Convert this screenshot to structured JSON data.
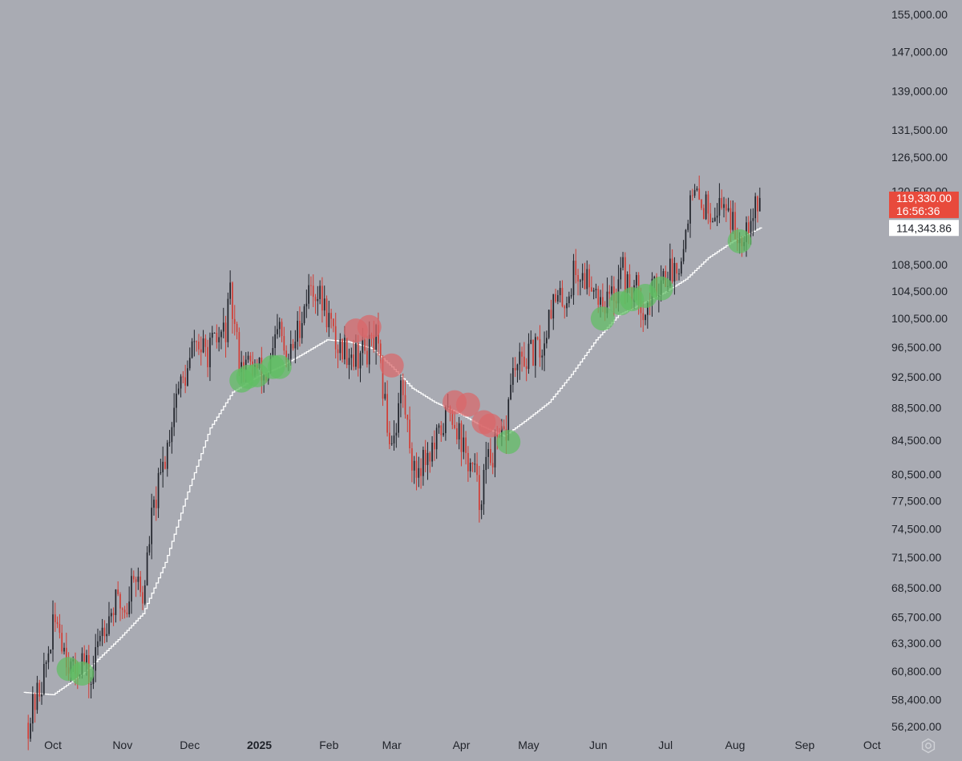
{
  "theme": {
    "background": "#a9abb3",
    "up_candle": "#1f2229",
    "down_candle": "#d23b33",
    "ma_line": "#ffffff",
    "axis_text": "#1f2229",
    "price_badge_bg": "#e84a3c",
    "price_badge_text": "#ffffff",
    "ma_badge_bg": "#ffffff",
    "ma_badge_text": "#1f2229",
    "support_circle": "#5fbe62",
    "resistance_circle": "#d9666a"
  },
  "chart_data": {
    "type": "candlestick",
    "scale": "log",
    "x_range": [
      "2024-09-19",
      "2025-10-28"
    ],
    "y_range": [
      55000,
      160000
    ],
    "y_ticks": [
      {
        "value": 155000,
        "label": "155,000.00"
      },
      {
        "value": 147000,
        "label": "147,000.00"
      },
      {
        "value": 139000,
        "label": "139,000.00"
      },
      {
        "value": 131500,
        "label": "131,500.00"
      },
      {
        "value": 126500,
        "label": "126,500.00"
      },
      {
        "value": 120500,
        "label": "120,500.00"
      },
      {
        "value": 108500,
        "label": "108,500.00"
      },
      {
        "value": 104500,
        "label": "104,500.00"
      },
      {
        "value": 100500,
        "label": "100,500.00"
      },
      {
        "value": 96500,
        "label": "96,500.00"
      },
      {
        "value": 92500,
        "label": "92,500.00"
      },
      {
        "value": 88500,
        "label": "88,500.00"
      },
      {
        "value": 84500,
        "label": "84,500.00"
      },
      {
        "value": 80500,
        "label": "80,500.00"
      },
      {
        "value": 77500,
        "label": "77,500.00"
      },
      {
        "value": 74500,
        "label": "74,500.00"
      },
      {
        "value": 71500,
        "label": "71,500.00"
      },
      {
        "value": 68500,
        "label": "68,500.00"
      },
      {
        "value": 65700,
        "label": "65,700.00"
      },
      {
        "value": 63300,
        "label": "63,300.00"
      },
      {
        "value": 60800,
        "label": "60,800.00"
      },
      {
        "value": 58400,
        "label": "58,400.00"
      },
      {
        "value": 56200,
        "label": "56,200.00"
      }
    ],
    "x_ticks": [
      {
        "date": "2024-10-01",
        "label": "Oct",
        "bold": false
      },
      {
        "date": "2024-11-01",
        "label": "Nov",
        "bold": false
      },
      {
        "date": "2024-12-01",
        "label": "Dec",
        "bold": false
      },
      {
        "date": "2025-01-01",
        "label": "2025",
        "bold": true
      },
      {
        "date": "2025-02-01",
        "label": "Feb",
        "bold": false
      },
      {
        "date": "2025-03-01",
        "label": "Mar",
        "bold": false
      },
      {
        "date": "2025-04-01",
        "label": "Apr",
        "bold": false
      },
      {
        "date": "2025-05-01",
        "label": "May",
        "bold": false
      },
      {
        "date": "2025-06-01",
        "label": "Jun",
        "bold": false
      },
      {
        "date": "2025-07-01",
        "label": "Jul",
        "bold": false
      },
      {
        "date": "2025-08-01",
        "label": "Aug",
        "bold": false
      },
      {
        "date": "2025-09-01",
        "label": "Sep",
        "bold": false
      },
      {
        "date": "2025-10-01",
        "label": "Oct",
        "bold": false
      }
    ],
    "price_path": [
      [
        "2024-09-20",
        56500
      ],
      [
        "2024-09-27",
        60500
      ],
      [
        "2024-10-01",
        64500
      ],
      [
        "2024-10-03",
        65500
      ],
      [
        "2024-10-06",
        63000
      ],
      [
        "2024-10-10",
        60500
      ],
      [
        "2024-10-14",
        62000
      ],
      [
        "2024-10-18",
        59800
      ],
      [
        "2024-10-22",
        64500
      ],
      [
        "2024-10-29",
        67000
      ],
      [
        "2024-11-03",
        66500
      ],
      [
        "2024-11-06",
        70500
      ],
      [
        "2024-11-10",
        67300
      ],
      [
        "2024-11-14",
        75500
      ],
      [
        "2024-11-20",
        82500
      ],
      [
        "2024-11-25",
        90500
      ],
      [
        "2024-11-30",
        93000
      ],
      [
        "2024-12-03",
        97500
      ],
      [
        "2024-12-08",
        95500
      ],
      [
        "2024-12-12",
        96800
      ],
      [
        "2024-12-17",
        99000
      ],
      [
        "2024-12-19",
        103500
      ],
      [
        "2024-12-23",
        95000
      ],
      [
        "2024-12-27",
        94000
      ],
      [
        "2024-12-31",
        93500
      ],
      [
        "2025-01-04",
        92500
      ],
      [
        "2025-01-07",
        95500
      ],
      [
        "2025-01-10",
        99000
      ],
      [
        "2025-01-13",
        94000
      ],
      [
        "2025-01-17",
        97500
      ],
      [
        "2025-01-21",
        102500
      ],
      [
        "2025-01-24",
        105500
      ],
      [
        "2025-01-28",
        103500
      ],
      [
        "2025-02-01",
        100500
      ],
      [
        "2025-02-04",
        96800
      ],
      [
        "2025-02-09",
        96200
      ],
      [
        "2025-02-13",
        95500
      ],
      [
        "2025-02-18",
        96000
      ],
      [
        "2025-02-22",
        97500
      ],
      [
        "2025-02-25",
        91000
      ],
      [
        "2025-02-28",
        84500
      ],
      [
        "2025-03-03",
        86500
      ],
      [
        "2025-03-05",
        91500
      ],
      [
        "2025-03-09",
        84500
      ],
      [
        "2025-03-11",
        80500
      ],
      [
        "2025-03-15",
        82500
      ],
      [
        "2025-03-20",
        83500
      ],
      [
        "2025-03-24",
        86500
      ],
      [
        "2025-03-27",
        88500
      ],
      [
        "2025-03-31",
        85500
      ],
      [
        "2025-04-03",
        82500
      ],
      [
        "2025-04-07",
        80500
      ],
      [
        "2025-04-09",
        77500
      ],
      [
        "2025-04-12",
        81500
      ],
      [
        "2025-04-15",
        83000
      ],
      [
        "2025-04-18",
        84000
      ],
      [
        "2025-04-21",
        85500
      ],
      [
        "2025-04-23",
        92500
      ],
      [
        "2025-04-27",
        94000
      ],
      [
        "2025-05-02",
        95500
      ],
      [
        "2025-05-08",
        96500
      ],
      [
        "2025-05-10",
        102500
      ],
      [
        "2025-05-15",
        103000
      ],
      [
        "2025-05-19",
        104000
      ],
      [
        "2025-05-21",
        107500
      ],
      [
        "2025-05-25",
        106500
      ],
      [
        "2025-05-29",
        106500
      ],
      [
        "2025-06-01",
        104000
      ],
      [
        "2025-06-05",
        103000
      ],
      [
        "2025-06-09",
        104500
      ],
      [
        "2025-06-11",
        109500
      ],
      [
        "2025-06-14",
        105000
      ],
      [
        "2025-06-19",
        104500
      ],
      [
        "2025-06-22",
        101000
      ],
      [
        "2025-06-25",
        104500
      ],
      [
        "2025-06-30",
        107000
      ],
      [
        "2025-07-04",
        107500
      ],
      [
        "2025-07-09",
        111000
      ],
      [
        "2025-07-11",
        117500
      ],
      [
        "2025-07-14",
        119500
      ],
      [
        "2025-07-18",
        118000
      ],
      [
        "2025-07-23",
        117500
      ],
      [
        "2025-07-28",
        118800
      ],
      [
        "2025-08-01",
        113500
      ],
      [
        "2025-08-03",
        113000
      ],
      [
        "2025-08-07",
        116000
      ],
      [
        "2025-08-10",
        118500
      ],
      [
        "2025-08-12",
        119330
      ]
    ],
    "sma": [
      [
        "2024-09-18",
        59000
      ],
      [
        "2024-10-01",
        58800
      ],
      [
        "2024-10-15",
        60700
      ],
      [
        "2024-10-31",
        63800
      ],
      [
        "2024-11-10",
        66000
      ],
      [
        "2024-11-20",
        71000
      ],
      [
        "2024-11-30",
        78500
      ],
      [
        "2024-12-10",
        86000
      ],
      [
        "2024-12-20",
        90500
      ],
      [
        "2024-12-31",
        92500
      ],
      [
        "2025-01-10",
        93800
      ],
      [
        "2025-01-20",
        95500
      ],
      [
        "2025-01-31",
        97500
      ],
      [
        "2025-02-10",
        97200
      ],
      [
        "2025-02-20",
        96300
      ],
      [
        "2025-03-01",
        93800
      ],
      [
        "2025-03-10",
        91000
      ],
      [
        "2025-03-20",
        89200
      ],
      [
        "2025-03-31",
        87800
      ],
      [
        "2025-04-10",
        86200
      ],
      [
        "2025-04-20",
        85000
      ],
      [
        "2025-04-30",
        87000
      ],
      [
        "2025-05-10",
        89200
      ],
      [
        "2025-05-20",
        92800
      ],
      [
        "2025-05-31",
        97500
      ],
      [
        "2025-06-10",
        101000
      ],
      [
        "2025-06-20",
        102600
      ],
      [
        "2025-06-30",
        104200
      ],
      [
        "2025-07-10",
        106300
      ],
      [
        "2025-07-20",
        109600
      ],
      [
        "2025-07-31",
        112200
      ],
      [
        "2025-08-12",
        114343.86
      ]
    ],
    "last_price": {
      "value": 119330,
      "label": "119,330.00",
      "countdown": "16:56:36"
    },
    "ma_value": {
      "value": 114343.86,
      "label": "114,343.86"
    },
    "support_touches": [
      [
        "2024-10-08",
        61000
      ],
      [
        "2024-10-14",
        60600
      ],
      [
        "2024-12-24",
        92000
      ],
      [
        "2024-12-27",
        92500
      ],
      [
        "2024-12-31",
        92700
      ],
      [
        "2025-01-07",
        93800
      ],
      [
        "2025-01-10",
        93800
      ],
      [
        "2025-04-22",
        84300
      ],
      [
        "2025-06-03",
        100500
      ],
      [
        "2025-06-11",
        102700
      ],
      [
        "2025-06-16",
        103300
      ],
      [
        "2025-06-22",
        103800
      ],
      [
        "2025-06-29",
        104900
      ],
      [
        "2025-08-03",
        112200
      ]
    ],
    "resistance_touches": [
      [
        "2025-02-13",
        98800
      ],
      [
        "2025-02-19",
        99300
      ],
      [
        "2025-03-01",
        94000
      ],
      [
        "2025-03-29",
        89200
      ],
      [
        "2025-04-04",
        88900
      ],
      [
        "2025-04-11",
        86700
      ],
      [
        "2025-04-14",
        86300
      ]
    ]
  }
}
